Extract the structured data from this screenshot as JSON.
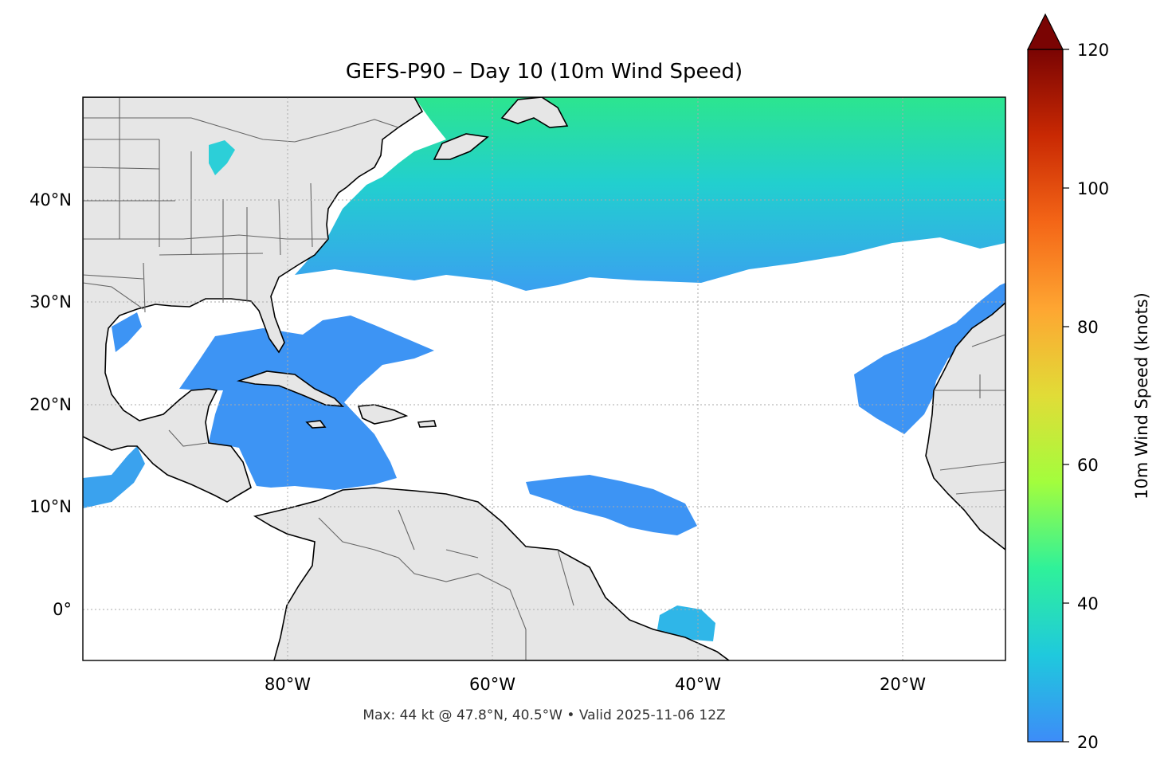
{
  "title": "GEFS-P90 – Day 10 (10m Wind Speed)",
  "footer": "Max: 44 kt @ 47.8°N, 40.5°W • Valid 2025-11-06 12Z",
  "map": {
    "extent_lon": [
      -100,
      -10
    ],
    "extent_lat": [
      -5,
      50
    ],
    "x_ticks": [
      {
        "lon": -80,
        "label": "80°W"
      },
      {
        "lon": -60,
        "label": "60°W"
      },
      {
        "lon": -40,
        "label": "40°W"
      },
      {
        "lon": -20,
        "label": "20°W"
      }
    ],
    "y_ticks": [
      {
        "lat": 40,
        "label": "40°N"
      },
      {
        "lat": 30,
        "label": "30°N"
      },
      {
        "lat": 20,
        "label": "20°N"
      },
      {
        "lat": 10,
        "label": "10°N"
      },
      {
        "lat": 0,
        "label": "0°"
      }
    ],
    "gridlines": true,
    "land_color": "#e6e6e6",
    "ocean_color": "#ffffff",
    "coast_color": "#000000",
    "border_color": "#666666"
  },
  "colorbar": {
    "label": "10m Wind Speed (knots)",
    "min": 20,
    "max": 120,
    "extend": "max",
    "extend_color": "#7a0403",
    "ticks": [
      {
        "value": 20,
        "label": "20"
      },
      {
        "value": 40,
        "label": "40"
      },
      {
        "value": 60,
        "label": "60"
      },
      {
        "value": 80,
        "label": "80"
      },
      {
        "value": 100,
        "label": "100"
      },
      {
        "value": 120,
        "label": "120"
      }
    ],
    "colormap": "turbo",
    "stops": [
      "#3d8cf8",
      "#1fc9dd",
      "#2ff19a",
      "#a3fd3d",
      "#e1dc37",
      "#fea632",
      "#f46617",
      "#c92903",
      "#7a0403"
    ]
  }
}
